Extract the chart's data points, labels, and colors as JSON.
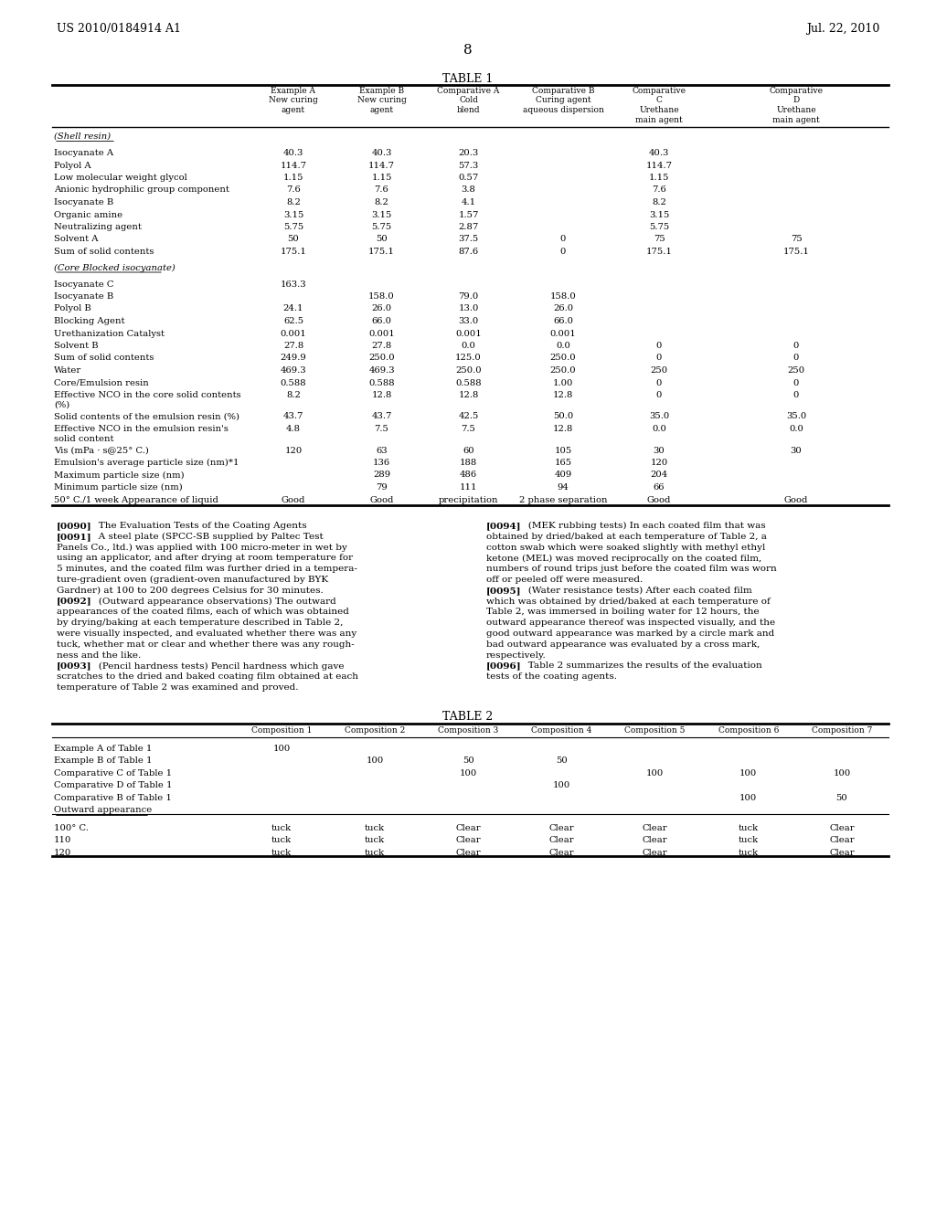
{
  "header_left": "US 2010/0184914 A1",
  "header_right": "Jul. 22, 2010",
  "page_number": "8",
  "table1_title": "TABLE 1",
  "table1_col_headers": [
    "",
    "Example A\nNew curing\nagent",
    "Example B\nNew curing\nagent",
    "Comparative A\nCold\nblend",
    "Comparative B\nCuring agent\naqueous dispersion",
    "Comparative\nC\nUrethane\nmain agent",
    "Comparative\nD\nUrethane\nmain agent"
  ],
  "table1_section1_header": "(Shell resin)",
  "table1_rows_s1": [
    [
      "Isocyanate A",
      "40.3",
      "40.3",
      "20.3",
      "",
      "40.3",
      ""
    ],
    [
      "Polyol A",
      "114.7",
      "114.7",
      "57.3",
      "",
      "114.7",
      ""
    ],
    [
      "Low molecular weight glycol",
      "1.15",
      "1.15",
      "0.57",
      "",
      "1.15",
      ""
    ],
    [
      "Anionic hydrophilic group component",
      "7.6",
      "7.6",
      "3.8",
      "",
      "7.6",
      ""
    ],
    [
      "Isocyanate B",
      "8.2",
      "8.2",
      "4.1",
      "",
      "8.2",
      ""
    ],
    [
      "Organic amine",
      "3.15",
      "3.15",
      "1.57",
      "",
      "3.15",
      ""
    ],
    [
      "Neutralizing agent",
      "5.75",
      "5.75",
      "2.87",
      "",
      "5.75",
      ""
    ],
    [
      "Solvent A",
      "50",
      "50",
      "37.5",
      "0",
      "75",
      "75"
    ],
    [
      "Sum of solid contents",
      "175.1",
      "175.1",
      "87.6",
      "0",
      "175.1",
      "175.1"
    ]
  ],
  "table1_section2_header": "(Core Blocked isocyanate)",
  "table1_rows_s2": [
    [
      "Isocyanate C",
      "163.3",
      "",
      "",
      "",
      "",
      ""
    ],
    [
      "Isocyanate B",
      "",
      "158.0",
      "79.0",
      "158.0",
      "",
      ""
    ],
    [
      "Polyol B",
      "24.1",
      "26.0",
      "13.0",
      "26.0",
      "",
      ""
    ],
    [
      "Blocking Agent",
      "62.5",
      "66.0",
      "33.0",
      "66.0",
      "",
      ""
    ],
    [
      "Urethanization Catalyst",
      "0.001",
      "0.001",
      "0.001",
      "0.001",
      "",
      ""
    ],
    [
      "Solvent B",
      "27.8",
      "27.8",
      "0.0",
      "0.0",
      "0",
      "0"
    ],
    [
      "Sum of solid contents",
      "249.9",
      "250.0",
      "125.0",
      "250.0",
      "0",
      "0"
    ],
    [
      "Water",
      "469.3",
      "469.3",
      "250.0",
      "250.0",
      "250",
      "250"
    ],
    [
      "Core/Emulsion resin",
      "0.588",
      "0.588",
      "0.588",
      "1.00",
      "0",
      "0"
    ],
    [
      "Effective NCO in the core solid contents\n(%)",
      "8.2",
      "12.8",
      "12.8",
      "12.8",
      "0",
      "0"
    ],
    [
      "Solid contents of the emulsion resin (%)",
      "43.7",
      "43.7",
      "42.5",
      "50.0",
      "35.0",
      "35.0"
    ],
    [
      "Effective NCO in the emulsion resin's\nsolid content",
      "4.8",
      "7.5",
      "7.5",
      "12.8",
      "0.0",
      "0.0"
    ],
    [
      "Vis (mPa · s@25° C.)",
      "120",
      "63",
      "60",
      "105",
      "30",
      "30"
    ],
    [
      "Emulsion's average particle size (nm)*1",
      "",
      "136",
      "188",
      "165",
      "120",
      ""
    ],
    [
      "Maximum particle size (nm)",
      "",
      "289",
      "486",
      "409",
      "204",
      ""
    ],
    [
      "Minimum particle size (nm)",
      "",
      "79",
      "111",
      "94",
      "66",
      ""
    ],
    [
      "50° C./1 week Appearance of liquid",
      "Good",
      "Good",
      "precipitation",
      "2 phase separation",
      "Good",
      "Good"
    ]
  ],
  "paragraph_text_left_lines": [
    [
      "[0090]",
      "   The Evaluation Tests of the Coating Agents"
    ],
    [
      "[0091]",
      "   A steel plate (SPCC-SB supplied by Paltec Test"
    ],
    [
      "",
      "Panels Co., ltd.) was applied with 100 micro-meter in wet by"
    ],
    [
      "",
      "using an applicator, and after drying at room temperature for"
    ],
    [
      "",
      "5 minutes, and the coated film was further dried in a tempera-"
    ],
    [
      "",
      "ture-gradient oven (gradient-oven manufactured by BYK"
    ],
    [
      "",
      "Gardner) at 100 to 200 degrees Celsius for 30 minutes."
    ],
    [
      "[0092]",
      "   (Outward appearance observations) The outward"
    ],
    [
      "",
      "appearances of the coated films, each of which was obtained"
    ],
    [
      "",
      "by drying/baking at each temperature described in Table 2,"
    ],
    [
      "",
      "were visually inspected, and evaluated whether there was any"
    ],
    [
      "",
      "tuck, whether mat or clear and whether there was any rough-"
    ],
    [
      "",
      "ness and the like."
    ],
    [
      "[0093]",
      "   (Pencil hardness tests) Pencil hardness which gave"
    ],
    [
      "",
      "scratches to the dried and baked coating film obtained at each"
    ],
    [
      "",
      "temperature of Table 2 was examined and proved."
    ]
  ],
  "paragraph_text_right_lines": [
    [
      "[0094]",
      "   (MEK rubbing tests) In each coated film that was"
    ],
    [
      "",
      "obtained by dried/baked at each temperature of Table 2, a"
    ],
    [
      "",
      "cotton swab which were soaked slightly with methyl ethyl"
    ],
    [
      "",
      "ketone (MEL) was moved reciprocally on the coated film,"
    ],
    [
      "",
      "numbers of round trips just before the coated film was worn"
    ],
    [
      "",
      "off or peeled off were measured."
    ],
    [
      "[0095]",
      "   (Water resistance tests) After each coated film"
    ],
    [
      "",
      "which was obtained by dried/baked at each temperature of"
    ],
    [
      "",
      "Table 2, was immersed in boiling water for 12 hours, the"
    ],
    [
      "",
      "outward appearance thereof was inspected visually, and the"
    ],
    [
      "",
      "good outward appearance was marked by a circle mark and"
    ],
    [
      "",
      "bad outward appearance was evaluated by a cross mark,"
    ],
    [
      "",
      "respectively."
    ],
    [
      "[0096]",
      "   Table 2 summarizes the results of the evaluation"
    ],
    [
      "",
      "tests of the coating agents."
    ]
  ],
  "table2_title": "TABLE 2",
  "table2_col_headers": [
    "",
    "Composition 1",
    "Composition 2",
    "Composition 3",
    "Composition 4",
    "Composition 5",
    "Composition 6",
    "Composition 7"
  ],
  "table2_rows": [
    [
      "Example A of Table 1",
      "100",
      "",
      "",
      "",
      "",
      "",
      ""
    ],
    [
      "Example B of Table 1",
      "",
      "100",
      "50",
      "50",
      "",
      "",
      ""
    ],
    [
      "Comparative C of Table 1",
      "",
      "",
      "100",
      "",
      "100",
      "100",
      "100"
    ],
    [
      "Comparative D of Table 1",
      "",
      "",
      "",
      "100",
      "",
      "",
      ""
    ],
    [
      "Comparative B of Table 1",
      "",
      "",
      "",
      "",
      "",
      "100",
      "50"
    ],
    [
      "Outward appearance",
      "",
      "",
      "",
      "",
      "",
      "",
      ""
    ]
  ],
  "table2_rows2": [
    [
      "100° C.",
      "tuck",
      "tuck",
      "Clear",
      "Clear",
      "Clear",
      "tuck",
      "Clear"
    ],
    [
      "110",
      "tuck",
      "tuck",
      "Clear",
      "Clear",
      "Clear",
      "tuck",
      "Clear"
    ],
    [
      "120",
      "tuck",
      "tuck",
      "Clear",
      "Clear",
      "Clear",
      "tuck",
      "Clear"
    ]
  ],
  "bg_color": "#ffffff",
  "text_color": "#000000",
  "font_size": 7.2
}
